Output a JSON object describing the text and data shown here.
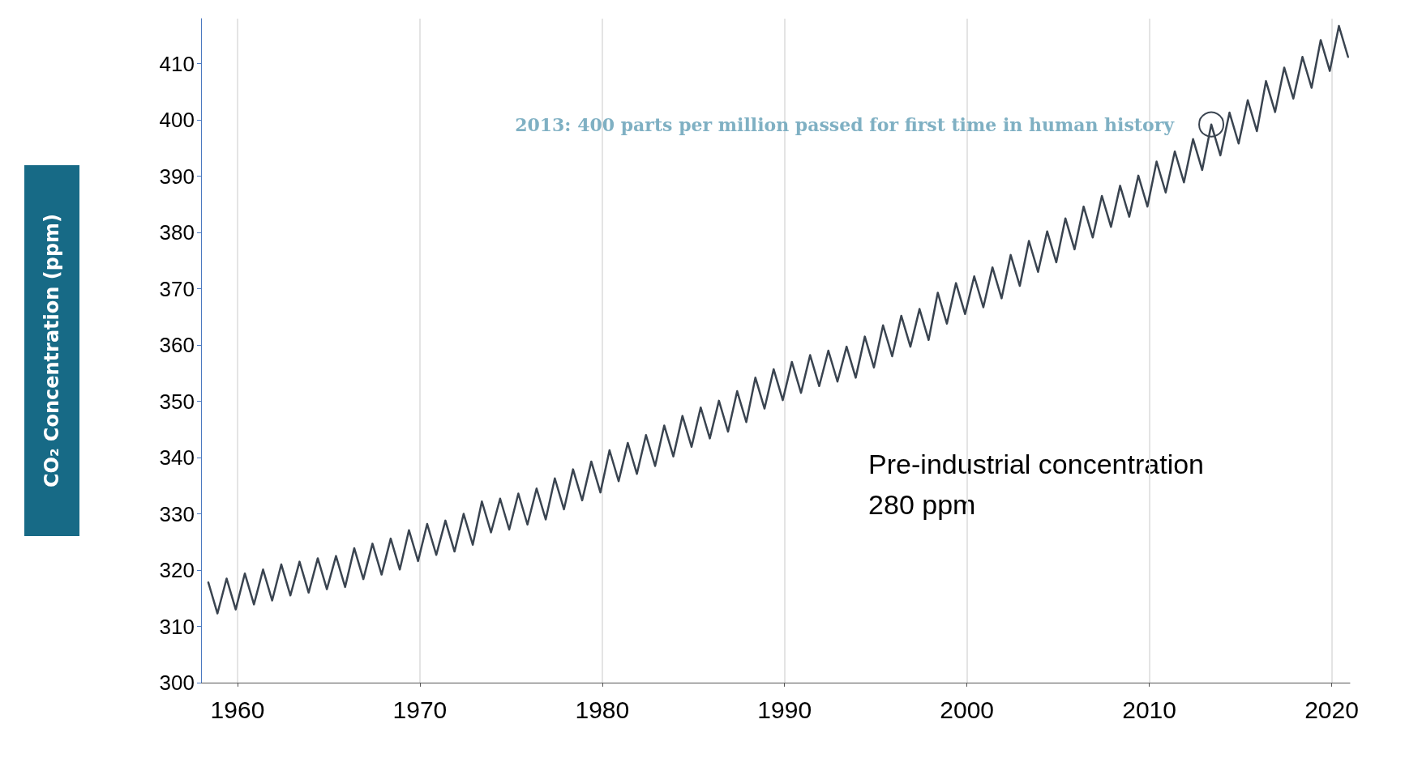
{
  "chart_data": {
    "type": "line",
    "ylabel": "CO₂ Concentration (ppm)",
    "x": [
      1958.4,
      1958.9,
      1959.4,
      1959.9,
      1960.4,
      1960.9,
      1961.4,
      1961.9,
      1962.4,
      1962.9,
      1963.4,
      1963.9,
      1964.4,
      1964.9,
      1965.4,
      1965.9,
      1966.4,
      1966.9,
      1967.4,
      1967.9,
      1968.4,
      1968.9,
      1969.4,
      1969.9,
      1970.4,
      1970.9,
      1971.4,
      1971.9,
      1972.4,
      1972.9,
      1973.4,
      1973.9,
      1974.4,
      1974.9,
      1975.4,
      1975.9,
      1976.4,
      1976.9,
      1977.4,
      1977.9,
      1978.4,
      1978.9,
      1979.4,
      1979.9,
      1980.4,
      1980.9,
      1981.4,
      1981.9,
      1982.4,
      1982.9,
      1983.4,
      1983.9,
      1984.4,
      1984.9,
      1985.4,
      1985.9,
      1986.4,
      1986.9,
      1987.4,
      1987.9,
      1988.4,
      1988.9,
      1989.4,
      1989.9,
      1990.4,
      1990.9,
      1991.4,
      1991.9,
      1992.4,
      1992.9,
      1993.4,
      1993.9,
      1994.4,
      1994.9,
      1995.4,
      1995.9,
      1996.4,
      1996.9,
      1997.4,
      1997.9,
      1998.4,
      1998.9,
      1999.4,
      1999.9,
      2000.4,
      2000.9,
      2001.4,
      2001.9,
      2002.4,
      2002.9,
      2003.4,
      2003.9,
      2004.4,
      2004.9,
      2005.4,
      2005.9,
      2006.4,
      2006.9,
      2007.4,
      2007.9,
      2008.4,
      2008.9,
      2009.4,
      2009.9,
      2010.4,
      2010.9,
      2011.4,
      2011.9,
      2012.4,
      2012.9,
      2013.4,
      2013.9,
      2014.4,
      2014.9,
      2015.4,
      2015.9,
      2016.4,
      2016.9,
      2017.4,
      2017.9,
      2018.4,
      2018.9,
      2019.4,
      2019.9,
      2020.4,
      2020.9
    ],
    "values": [
      317.8,
      312.3,
      318.5,
      313.0,
      319.4,
      313.9,
      320.1,
      314.6,
      321.0,
      315.5,
      321.5,
      316.0,
      322.1,
      316.6,
      322.5,
      317.0,
      323.9,
      318.4,
      324.7,
      319.2,
      325.6,
      320.1,
      327.1,
      321.6,
      328.2,
      322.7,
      328.8,
      323.3,
      330.0,
      324.5,
      332.2,
      326.7,
      332.7,
      327.2,
      333.6,
      328.1,
      334.5,
      329.0,
      336.3,
      330.8,
      337.9,
      332.4,
      339.3,
      333.8,
      341.3,
      335.8,
      342.6,
      337.1,
      344.0,
      338.5,
      345.7,
      340.2,
      347.4,
      341.9,
      348.9,
      343.4,
      350.1,
      344.6,
      351.8,
      346.3,
      354.2,
      348.7,
      355.7,
      350.2,
      357.0,
      351.5,
      358.2,
      352.7,
      359.0,
      353.5,
      359.7,
      354.2,
      361.5,
      356.0,
      363.5,
      358.0,
      365.2,
      359.7,
      366.4,
      360.9,
      369.3,
      363.8,
      371.0,
      365.5,
      372.2,
      366.7,
      373.8,
      368.3,
      376.0,
      370.5,
      378.5,
      373.0,
      380.2,
      374.7,
      382.5,
      377.0,
      384.6,
      379.1,
      386.5,
      381.0,
      388.3,
      382.8,
      390.1,
      384.6,
      392.6,
      387.1,
      394.4,
      388.9,
      396.6,
      391.1,
      399.2,
      393.7,
      401.3,
      395.8,
      403.5,
      398.0,
      406.9,
      401.4,
      409.3,
      403.8,
      411.2,
      405.7,
      414.2,
      408.7,
      416.7,
      411.2
    ],
    "color": "#3a4450",
    "marker": "none",
    "line_style": "solid",
    "xlim": [
      1958,
      2021
    ],
    "xticks": [
      1960,
      1970,
      1980,
      1990,
      2000,
      2010,
      2020
    ],
    "ylim": [
      300,
      418
    ],
    "yticks": [
      300,
      310,
      320,
      330,
      340,
      350,
      360,
      370,
      380,
      390,
      400,
      410
    ],
    "grid": "x",
    "annotations": [
      {
        "text": "2013: 400 parts per million passed for first time in human history",
        "x": 2013.4,
        "y": 399.2
      },
      "Pre-industrial concentration\n280 ppm"
    ]
  }
}
